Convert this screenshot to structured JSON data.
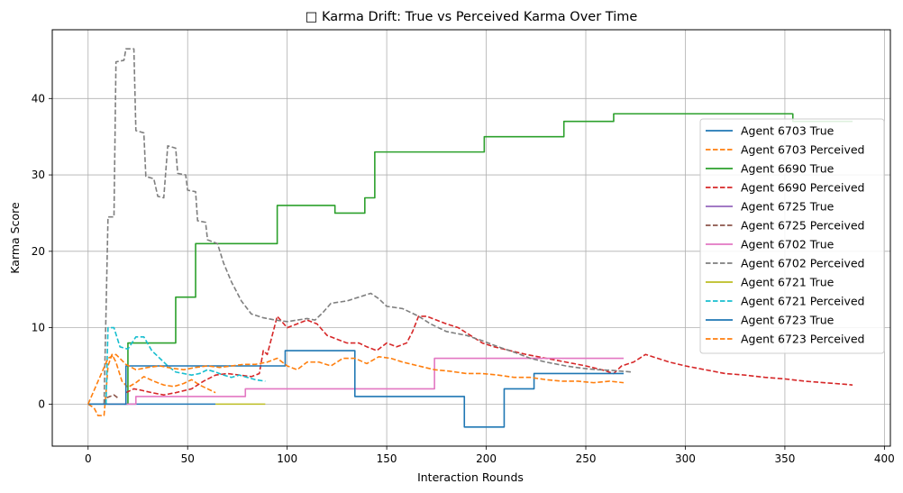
{
  "chart_data": {
    "type": "line",
    "title": "□ Karma Drift: True vs Perceived Karma Over Time",
    "xlabel": "Interaction Rounds",
    "ylabel": "Karma Score",
    "xlim": [
      -18,
      403
    ],
    "ylim": [
      -5.5,
      49
    ],
    "xticks": [
      0,
      50,
      100,
      150,
      200,
      250,
      300,
      350,
      400
    ],
    "yticks": [
      0,
      10,
      20,
      30,
      40
    ],
    "grid": true,
    "legend_position": "center-right",
    "series": [
      {
        "name": "Agent 6703 True",
        "color": "#1f77b4",
        "dash": false,
        "step": true,
        "points": [
          [
            0,
            0
          ],
          [
            64,
            0
          ]
        ]
      },
      {
        "name": "Agent 6703 Perceived",
        "color": "#ff7f0e",
        "dash": true,
        "step": false,
        "points": [
          [
            0,
            0
          ],
          [
            3,
            -0.5
          ],
          [
            5,
            -1.5
          ],
          [
            8,
            -1.5
          ],
          [
            9,
            1.5
          ],
          [
            10,
            5
          ],
          [
            12,
            6.5
          ],
          [
            14,
            5.5
          ],
          [
            17,
            3
          ],
          [
            20,
            2.2
          ],
          [
            24,
            2.8
          ],
          [
            28,
            3.6
          ],
          [
            33,
            3
          ],
          [
            38,
            2.5
          ],
          [
            43,
            2.3
          ],
          [
            48,
            2.7
          ],
          [
            52,
            3.2
          ],
          [
            56,
            2.5
          ],
          [
            60,
            2
          ],
          [
            64,
            1.5
          ]
        ]
      },
      {
        "name": "Agent 6690 True",
        "color": "#2ca02c",
        "dash": false,
        "step": true,
        "points": [
          [
            19,
            0
          ],
          [
            20,
            8
          ],
          [
            44,
            14
          ],
          [
            54,
            21
          ],
          [
            95,
            26
          ],
          [
            124,
            25
          ],
          [
            139,
            27
          ],
          [
            144,
            33
          ],
          [
            199,
            35
          ],
          [
            239,
            37
          ],
          [
            264,
            38
          ],
          [
            354,
            37
          ],
          [
            384,
            37
          ]
        ]
      },
      {
        "name": "Agent 6690 Perceived",
        "color": "#d62728",
        "dash": true,
        "step": false,
        "points": [
          [
            19,
            1.5
          ],
          [
            23,
            2
          ],
          [
            27,
            1.8
          ],
          [
            32,
            1.5
          ],
          [
            38,
            1.2
          ],
          [
            44,
            1.5
          ],
          [
            52,
            2
          ],
          [
            58,
            3
          ],
          [
            64,
            3.8
          ],
          [
            70,
            4
          ],
          [
            76,
            3.8
          ],
          [
            82,
            3.6
          ],
          [
            86,
            4
          ],
          [
            88,
            7
          ],
          [
            90,
            6.5
          ],
          [
            93,
            9.5
          ],
          [
            95,
            11.5
          ],
          [
            100,
            10
          ],
          [
            105,
            10.5
          ],
          [
            110,
            11
          ],
          [
            115,
            10.5
          ],
          [
            120,
            9
          ],
          [
            125,
            8.5
          ],
          [
            130,
            8
          ],
          [
            136,
            8
          ],
          [
            140,
            7.5
          ],
          [
            145,
            7
          ],
          [
            150,
            8
          ],
          [
            155,
            7.5
          ],
          [
            160,
            8
          ],
          [
            163,
            9.5
          ],
          [
            166,
            11.5
          ],
          [
            170,
            11.5
          ],
          [
            175,
            11
          ],
          [
            180,
            10.5
          ],
          [
            186,
            10
          ],
          [
            192,
            9
          ],
          [
            198,
            8
          ],
          [
            204,
            7.5
          ],
          [
            212,
            7
          ],
          [
            220,
            6.5
          ],
          [
            230,
            6
          ],
          [
            240,
            5.5
          ],
          [
            250,
            5
          ],
          [
            258,
            4.5
          ],
          [
            264,
            4
          ],
          [
            268,
            5
          ],
          [
            274,
            5.5
          ],
          [
            280,
            6.5
          ],
          [
            286,
            6
          ],
          [
            292,
            5.5
          ],
          [
            300,
            5
          ],
          [
            310,
            4.5
          ],
          [
            320,
            4
          ],
          [
            330,
            3.8
          ],
          [
            340,
            3.5
          ],
          [
            350,
            3.3
          ],
          [
            360,
            3
          ],
          [
            370,
            2.8
          ],
          [
            380,
            2.6
          ],
          [
            384,
            2.5
          ]
        ]
      },
      {
        "name": "Agent 6725 True",
        "color": "#9467bd",
        "dash": false,
        "step": true,
        "points": [
          [
            18,
            0
          ],
          [
            19,
            0
          ]
        ]
      },
      {
        "name": "Agent 6725 Perceived",
        "color": "#8c564b",
        "dash": true,
        "step": false,
        "points": [
          [
            8,
            0
          ],
          [
            9,
            0.8
          ],
          [
            11,
            1
          ],
          [
            13,
            1.2
          ],
          [
            15,
            0.8
          ]
        ]
      },
      {
        "name": "Agent 6702 True",
        "color": "#e377c2",
        "dash": false,
        "step": true,
        "points": [
          [
            10,
            0
          ],
          [
            24,
            1
          ],
          [
            79,
            2
          ],
          [
            174,
            6
          ],
          [
            269,
            6
          ]
        ]
      },
      {
        "name": "Agent 6702 Perceived",
        "color": "#7f7f7f",
        "dash": true,
        "step": false,
        "points": [
          [
            8,
            0
          ],
          [
            9,
            12
          ],
          [
            10,
            24.5
          ],
          [
            13,
            24.5
          ],
          [
            14,
            44.8
          ],
          [
            18,
            45
          ],
          [
            19,
            46.5
          ],
          [
            23,
            46.5
          ],
          [
            24,
            35.8
          ],
          [
            28,
            35.5
          ],
          [
            29,
            29.8
          ],
          [
            33,
            29.5
          ],
          [
            35,
            27.2
          ],
          [
            38,
            27
          ],
          [
            40,
            33.8
          ],
          [
            44,
            33.5
          ],
          [
            45,
            30.2
          ],
          [
            49,
            30
          ],
          [
            50,
            28
          ],
          [
            54,
            27.8
          ],
          [
            55,
            24
          ],
          [
            59,
            23.8
          ],
          [
            60,
            21.5
          ],
          [
            65,
            21
          ],
          [
            68,
            18.5
          ],
          [
            72,
            16
          ],
          [
            77,
            13.5
          ],
          [
            82,
            11.8
          ],
          [
            88,
            11.3
          ],
          [
            94,
            11
          ],
          [
            100,
            10.8
          ],
          [
            105,
            11
          ],
          [
            110,
            11.2
          ],
          [
            114,
            11
          ],
          [
            118,
            12
          ],
          [
            122,
            13.2
          ],
          [
            130,
            13.5
          ],
          [
            136,
            14
          ],
          [
            142,
            14.5
          ],
          [
            146,
            13.8
          ],
          [
            150,
            12.8
          ],
          [
            158,
            12.5
          ],
          [
            166,
            11.5
          ],
          [
            172,
            10.5
          ],
          [
            180,
            9.5
          ],
          [
            190,
            9
          ],
          [
            198,
            8.3
          ],
          [
            206,
            7.5
          ],
          [
            214,
            6.8
          ],
          [
            222,
            6
          ],
          [
            230,
            5.5
          ],
          [
            240,
            5
          ],
          [
            248,
            4.7
          ],
          [
            256,
            4.5
          ],
          [
            264,
            4.4
          ],
          [
            273,
            4.2
          ]
        ]
      },
      {
        "name": "Agent 6721 True",
        "color": "#bcbd22",
        "dash": false,
        "step": true,
        "points": [
          [
            64,
            0
          ],
          [
            89,
            0
          ]
        ]
      },
      {
        "name": "Agent 6721 Perceived",
        "color": "#17becf",
        "dash": true,
        "step": false,
        "points": [
          [
            9,
            0
          ],
          [
            10,
            10
          ],
          [
            13,
            10
          ],
          [
            16,
            7.5
          ],
          [
            20,
            7.2
          ],
          [
            24,
            8.8
          ],
          [
            28,
            8.8
          ],
          [
            32,
            7
          ],
          [
            36,
            6
          ],
          [
            40,
            5
          ],
          [
            44,
            4.2
          ],
          [
            48,
            4
          ],
          [
            52,
            3.8
          ],
          [
            56,
            4
          ],
          [
            60,
            4.5
          ],
          [
            64,
            4.2
          ],
          [
            68,
            3.8
          ],
          [
            72,
            3.5
          ],
          [
            76,
            3.8
          ],
          [
            80,
            3.5
          ],
          [
            84,
            3.2
          ],
          [
            89,
            3
          ]
        ]
      },
      {
        "name": "Agent 6723 True",
        "color": "#1f77b4",
        "dash": false,
        "step": true,
        "points": [
          [
            0,
            0
          ],
          [
            19,
            5
          ],
          [
            99,
            7
          ],
          [
            134,
            1
          ],
          [
            189,
            -3
          ],
          [
            209,
            2
          ],
          [
            224,
            4
          ],
          [
            269,
            4
          ]
        ]
      },
      {
        "name": "Agent 6723 Perceived",
        "color": "#ff7f0e",
        "dash": true,
        "step": false,
        "points": [
          [
            0,
            0
          ],
          [
            10,
            6
          ],
          [
            14,
            6.5
          ],
          [
            19,
            5.2
          ],
          [
            24,
            4.5
          ],
          [
            30,
            4.8
          ],
          [
            36,
            5
          ],
          [
            42,
            4.7
          ],
          [
            48,
            4.5
          ],
          [
            54,
            4.8
          ],
          [
            60,
            5
          ],
          [
            66,
            4.8
          ],
          [
            72,
            5
          ],
          [
            78,
            5.2
          ],
          [
            84,
            5.2
          ],
          [
            90,
            5.5
          ],
          [
            95,
            6
          ],
          [
            100,
            5
          ],
          [
            105,
            4.5
          ],
          [
            110,
            5.5
          ],
          [
            116,
            5.5
          ],
          [
            122,
            5
          ],
          [
            128,
            6
          ],
          [
            134,
            6
          ],
          [
            140,
            5.3
          ],
          [
            146,
            6.2
          ],
          [
            152,
            6
          ],
          [
            158,
            5.5
          ],
          [
            166,
            5
          ],
          [
            174,
            4.5
          ],
          [
            182,
            4.3
          ],
          [
            190,
            4
          ],
          [
            198,
            4
          ],
          [
            206,
            3.8
          ],
          [
            214,
            3.5
          ],
          [
            222,
            3.5
          ],
          [
            230,
            3.2
          ],
          [
            238,
            3
          ],
          [
            246,
            3
          ],
          [
            254,
            2.8
          ],
          [
            262,
            3
          ],
          [
            269,
            2.8
          ]
        ]
      }
    ]
  }
}
